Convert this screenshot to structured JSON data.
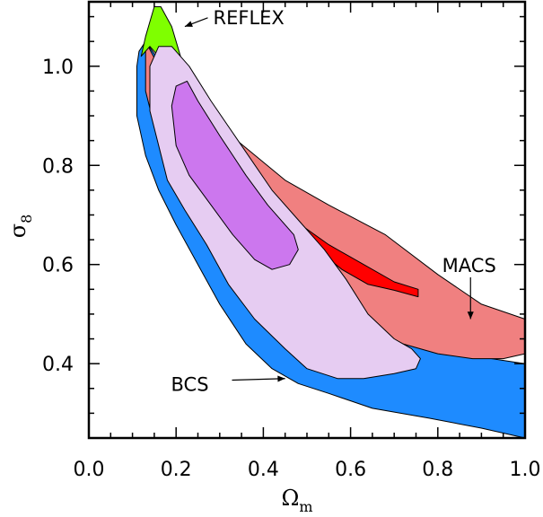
{
  "chart_data": {
    "type": "area",
    "title": "",
    "xlabel": {
      "symbol": "Ω",
      "subscript": "m"
    },
    "ylabel": {
      "symbol": "σ",
      "subscript": "8"
    },
    "xlim": [
      0.0,
      1.0
    ],
    "ylim": [
      0.25,
      1.13
    ],
    "xticks": [
      "0.0",
      "0.2",
      "0.4",
      "0.6",
      "0.8",
      "1.0"
    ],
    "xtick_values": [
      0.0,
      0.2,
      0.4,
      0.6,
      0.8,
      1.0
    ],
    "yticks": [
      "0.4",
      "0.6",
      "0.8",
      "1.0"
    ],
    "ytick_values": [
      0.4,
      0.6,
      0.8,
      1.0
    ],
    "annotations": [
      {
        "text": "REFLEX",
        "arrow_to": [
          0.22,
          1.08
        ],
        "text_at": [
          0.285,
          1.085
        ]
      },
      {
        "text": "MACS",
        "arrow_to": [
          0.875,
          0.49
        ],
        "text_at": [
          0.88,
          0.585
        ]
      },
      {
        "text": "BCS",
        "arrow_to": [
          0.45,
          0.37
        ],
        "text_at": [
          0.25,
          0.345
        ]
      }
    ],
    "colors": {
      "reflex_outer": "#7fff00",
      "macs_outer": "#f08080",
      "macs_inner": "#ff0000",
      "bcs_outer": "#1e8bff",
      "bcs_light": "#e6ccf2",
      "bcs_inner": "#cc77ee"
    },
    "contours": [
      {
        "id": "bcs-outer",
        "color_key": "bcs_outer",
        "points": [
          [
            0.11,
            1.0
          ],
          [
            0.115,
            1.03
          ],
          [
            0.13,
            1.05
          ],
          [
            0.17,
            1.0
          ],
          [
            0.24,
            0.92
          ],
          [
            0.3,
            0.84
          ],
          [
            0.38,
            0.74
          ],
          [
            0.45,
            0.66
          ],
          [
            0.52,
            0.55
          ],
          [
            0.56,
            0.48
          ],
          [
            0.6,
            0.45
          ],
          [
            0.7,
            0.45
          ],
          [
            0.85,
            0.42
          ],
          [
            1.0,
            0.4
          ],
          [
            1.0,
            0.25
          ],
          [
            0.9,
            0.27
          ],
          [
            0.78,
            0.29
          ],
          [
            0.65,
            0.31
          ],
          [
            0.55,
            0.34
          ],
          [
            0.48,
            0.36
          ],
          [
            0.42,
            0.39
          ],
          [
            0.36,
            0.44
          ],
          [
            0.3,
            0.52
          ],
          [
            0.25,
            0.6
          ],
          [
            0.2,
            0.68
          ],
          [
            0.16,
            0.75
          ],
          [
            0.13,
            0.82
          ],
          [
            0.11,
            0.9
          ]
        ]
      },
      {
        "id": "macs-outer",
        "color_key": "macs_outer",
        "points": [
          [
            0.13,
            1.05
          ],
          [
            0.16,
            1.0
          ],
          [
            0.2,
            0.97
          ],
          [
            0.26,
            0.92
          ],
          [
            0.34,
            0.85
          ],
          [
            0.45,
            0.77
          ],
          [
            0.55,
            0.72
          ],
          [
            0.68,
            0.66
          ],
          [
            0.8,
            0.58
          ],
          [
            0.9,
            0.52
          ],
          [
            1.0,
            0.49
          ],
          [
            1.0,
            0.42
          ],
          [
            0.95,
            0.41
          ],
          [
            0.88,
            0.41
          ],
          [
            0.8,
            0.42
          ],
          [
            0.72,
            0.44
          ],
          [
            0.65,
            0.47
          ],
          [
            0.58,
            0.52
          ],
          [
            0.5,
            0.6
          ],
          [
            0.42,
            0.66
          ],
          [
            0.32,
            0.74
          ],
          [
            0.24,
            0.8
          ],
          [
            0.18,
            0.84
          ],
          [
            0.15,
            0.88
          ],
          [
            0.13,
            0.95
          ]
        ]
      },
      {
        "id": "macs-inner",
        "color_key": "macs_inner",
        "points": [
          [
            0.47,
            0.69
          ],
          [
            0.55,
            0.64
          ],
          [
            0.63,
            0.6
          ],
          [
            0.7,
            0.565
          ],
          [
            0.755,
            0.55
          ],
          [
            0.755,
            0.535
          ],
          [
            0.7,
            0.548
          ],
          [
            0.64,
            0.56
          ],
          [
            0.58,
            0.59
          ],
          [
            0.51,
            0.64
          ],
          [
            0.46,
            0.68
          ]
        ]
      },
      {
        "id": "reflex-outer",
        "color_key": "reflex_outer",
        "points": [
          [
            0.14,
            1.09
          ],
          [
            0.15,
            1.12
          ],
          [
            0.165,
            1.12
          ],
          [
            0.19,
            1.08
          ],
          [
            0.21,
            1.02
          ],
          [
            0.2,
            0.99
          ],
          [
            0.17,
            1.01
          ],
          [
            0.14,
            1.04
          ],
          [
            0.12,
            1.02
          ],
          [
            0.13,
            1.06
          ]
        ]
      },
      {
        "id": "bcs-light",
        "color_key": "bcs_light",
        "points": [
          [
            0.14,
            1.0
          ],
          [
            0.16,
            1.04
          ],
          [
            0.19,
            1.04
          ],
          [
            0.23,
            1.0
          ],
          [
            0.28,
            0.93
          ],
          [
            0.35,
            0.84
          ],
          [
            0.42,
            0.75
          ],
          [
            0.48,
            0.69
          ],
          [
            0.54,
            0.63
          ],
          [
            0.59,
            0.57
          ],
          [
            0.64,
            0.5
          ],
          [
            0.7,
            0.45
          ],
          [
            0.74,
            0.43
          ],
          [
            0.76,
            0.41
          ],
          [
            0.75,
            0.39
          ],
          [
            0.7,
            0.38
          ],
          [
            0.63,
            0.37
          ],
          [
            0.57,
            0.37
          ],
          [
            0.5,
            0.39
          ],
          [
            0.45,
            0.43
          ],
          [
            0.38,
            0.49
          ],
          [
            0.32,
            0.56
          ],
          [
            0.27,
            0.64
          ],
          [
            0.22,
            0.71
          ],
          [
            0.18,
            0.77
          ],
          [
            0.16,
            0.84
          ],
          [
            0.14,
            0.91
          ]
        ]
      },
      {
        "id": "bcs-inner",
        "color_key": "bcs_inner",
        "points": [
          [
            0.19,
            0.92
          ],
          [
            0.2,
            0.96
          ],
          [
            0.225,
            0.97
          ],
          [
            0.25,
            0.93
          ],
          [
            0.3,
            0.86
          ],
          [
            0.36,
            0.78
          ],
          [
            0.41,
            0.72
          ],
          [
            0.47,
            0.66
          ],
          [
            0.48,
            0.63
          ],
          [
            0.46,
            0.6
          ],
          [
            0.42,
            0.59
          ],
          [
            0.38,
            0.61
          ],
          [
            0.33,
            0.66
          ],
          [
            0.28,
            0.72
          ],
          [
            0.23,
            0.78
          ],
          [
            0.2,
            0.84
          ]
        ]
      }
    ]
  }
}
